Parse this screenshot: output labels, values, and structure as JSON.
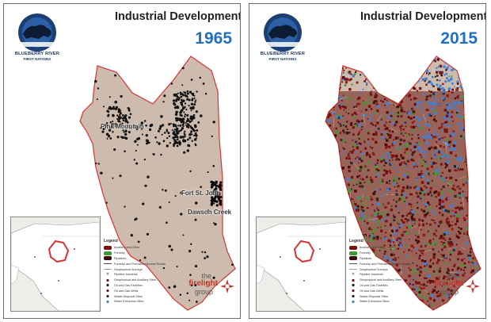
{
  "colors": {
    "land": "#cdbcae",
    "land_shadow": "#b5a193",
    "boundary": "#d73434",
    "inset_water": "#eceee9",
    "inset_land": "#ffffff",
    "year_blue": "#1f6fc9",
    "dev_red": "#7a1010",
    "dev_green": "#3f9a35",
    "dev_blue": "#3c82db",
    "dot_black": "#111111",
    "firelight_red": "#c0362c"
  },
  "logo": {
    "line1": "BLUEBERRY RIVER",
    "line2": "FIRST NATIONS",
    "icon": "bison-logo-icon"
  },
  "panels": [
    {
      "id": "left",
      "title": "Industrial Development",
      "year": "1965",
      "places": [
        {
          "name": "Pink Mountain"
        },
        {
          "name": "Fort St. John"
        },
        {
          "name": "Dawson Creek"
        }
      ]
    },
    {
      "id": "right",
      "title": "Industrial Development",
      "year": "2015",
      "places": []
    }
  ],
  "legend": {
    "title": "Legend",
    "items": [
      {
        "label": "Ancillary and Other",
        "symbol": "dark-fill",
        "color": "#7a1010"
      },
      {
        "label": "Forestry",
        "symbol": "green-fill",
        "color": "#3f9a35"
      },
      {
        "label": "Pipelines",
        "symbol": "dark-fill",
        "color": "#3a0a0a"
      },
      {
        "label": "Forestry and Petroleum Access Roads",
        "symbol": "line",
        "color": "#555555"
      },
      {
        "label": "Geophysical Surveys",
        "symbol": "line",
        "color": "#9a9a9a"
      },
      {
        "label": "Pipeline Incidents",
        "symbol": "x",
        "color": "#444444"
      },
      {
        "label": "Geophysical and Ancillary Sites",
        "symbol": "dot",
        "color": "#7a1010"
      },
      {
        "label": "Oil and Gas Facilities",
        "symbol": "dot",
        "color": "#1a1a1a"
      },
      {
        "label": "Oil and Gas Wells",
        "symbol": "dot",
        "color": "#5a2a1a"
      },
      {
        "label": "Waste Disposal Sites",
        "symbol": "dot",
        "color": "#222222"
      },
      {
        "label": "Water Extraction Sites",
        "symbol": "dot",
        "color": "#3c82db"
      }
    ]
  },
  "brand": {
    "the": "the",
    "name": "firelight",
    "group": "group",
    "icon": "firelight-flame-icon"
  }
}
